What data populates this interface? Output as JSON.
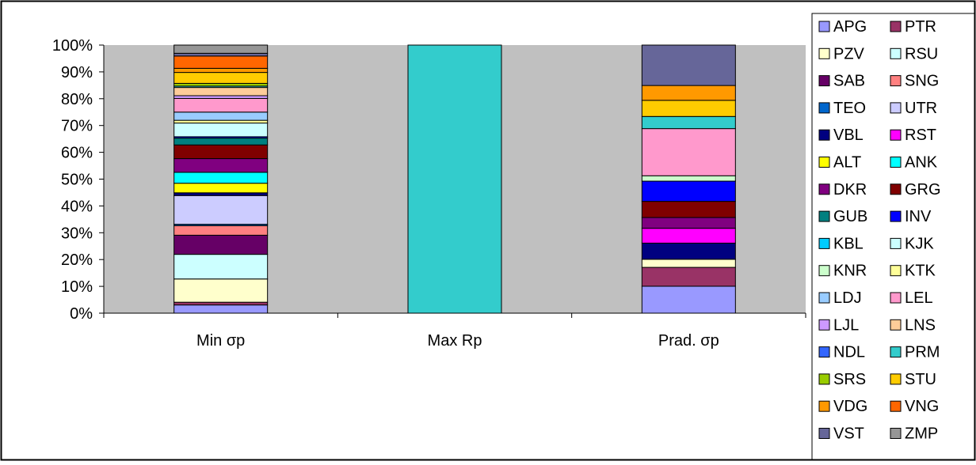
{
  "chart_data": {
    "type": "bar",
    "stacked": true,
    "normalized": true,
    "categories": [
      "Min σp",
      "Max Rp",
      "Prad. σp"
    ],
    "y_ticks": [
      "0%",
      "10%",
      "20%",
      "30%",
      "40%",
      "50%",
      "60%",
      "70%",
      "80%",
      "90%",
      "100%"
    ],
    "ylim": [
      0,
      100
    ],
    "grid": false,
    "plot_background": "#c0c0c0",
    "legend_position": "right",
    "series": [
      {
        "name": "APG",
        "color": "#9999ff",
        "values": [
          3.0,
          0,
          10.0
        ]
      },
      {
        "name": "PTR",
        "color": "#993366",
        "values": [
          1.0,
          0,
          7.0
        ]
      },
      {
        "name": "PZV",
        "color": "#ffffcc",
        "values": [
          8.5,
          0,
          3.0
        ]
      },
      {
        "name": "RSU",
        "color": "#ccffff",
        "values": [
          9.0,
          0,
          0
        ]
      },
      {
        "name": "SAB",
        "color": "#660066",
        "values": [
          7.0,
          0,
          0
        ]
      },
      {
        "name": "SNG",
        "color": "#ff8080",
        "values": [
          3.5,
          0,
          0
        ]
      },
      {
        "name": "TEO",
        "color": "#0066cc",
        "values": [
          0.5,
          0,
          0
        ]
      },
      {
        "name": "UTR",
        "color": "#ccccff",
        "values": [
          10.5,
          0,
          0
        ]
      },
      {
        "name": "VBL",
        "color": "#000080",
        "values": [
          1.0,
          0,
          6.0
        ]
      },
      {
        "name": "RST",
        "color": "#ff00ff",
        "values": [
          0,
          0,
          5.5
        ]
      },
      {
        "name": "ALT",
        "color": "#ffff00",
        "values": [
          3.5,
          0,
          0
        ]
      },
      {
        "name": "ANK",
        "color": "#00ffff",
        "values": [
          4.0,
          0,
          0
        ]
      },
      {
        "name": "DKR",
        "color": "#800080",
        "values": [
          5.0,
          0,
          4.0
        ]
      },
      {
        "name": "GRG",
        "color": "#800000",
        "values": [
          5.0,
          0,
          6.0
        ]
      },
      {
        "name": "GUB",
        "color": "#008080",
        "values": [
          2.5,
          0,
          0
        ]
      },
      {
        "name": "INV",
        "color": "#0000ff",
        "values": [
          0.5,
          0,
          7.5
        ]
      },
      {
        "name": "KBL",
        "color": "#00ccff",
        "values": [
          0,
          0,
          0
        ]
      },
      {
        "name": "KJK",
        "color": "#ccffff",
        "values": [
          5.0,
          0,
          0
        ]
      },
      {
        "name": "KNR",
        "color": "#ccffcc",
        "values": [
          0,
          0,
          2.0
        ]
      },
      {
        "name": "KTK",
        "color": "#ffff99",
        "values": [
          1.0,
          0,
          0
        ]
      },
      {
        "name": "LDJ",
        "color": "#99ccff",
        "values": [
          3.0,
          0,
          0
        ]
      },
      {
        "name": "LEL",
        "color": "#ff99cc",
        "values": [
          5.0,
          0,
          17.5
        ]
      },
      {
        "name": "LJL",
        "color": "#cc99ff",
        "values": [
          1.0,
          0,
          0
        ]
      },
      {
        "name": "LNS",
        "color": "#ffcc99",
        "values": [
          3.0,
          0,
          0
        ]
      },
      {
        "name": "NDL",
        "color": "#3366ff",
        "values": [
          0,
          0,
          0
        ]
      },
      {
        "name": "PRM",
        "color": "#33cccc",
        "values": [
          0.5,
          100,
          4.5
        ]
      },
      {
        "name": "SRS",
        "color": "#99cc00",
        "values": [
          1.0,
          0,
          0
        ]
      },
      {
        "name": "STU",
        "color": "#ffcc00",
        "values": [
          4.0,
          0,
          6.0
        ]
      },
      {
        "name": "VDG",
        "color": "#ff9900",
        "values": [
          1.5,
          0,
          5.5
        ]
      },
      {
        "name": "VNG",
        "color": "#ff6600",
        "values": [
          4.5,
          0,
          0
        ]
      },
      {
        "name": "VST",
        "color": "#666699",
        "values": [
          1.0,
          0,
          15.0
        ]
      },
      {
        "name": "ZMP",
        "color": "#969696",
        "values": [
          3.0,
          0,
          0
        ]
      }
    ]
  }
}
